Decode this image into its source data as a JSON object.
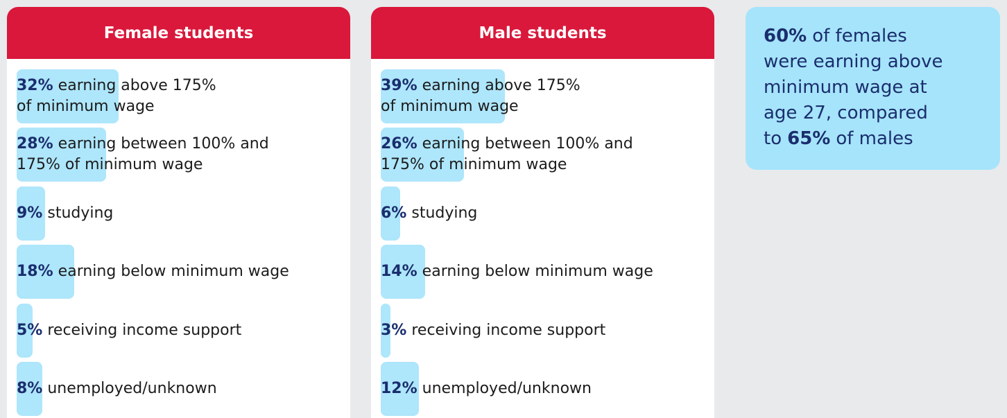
{
  "chart_data": [
    {
      "type": "bar",
      "title": "Female students",
      "color": "#aee6fb",
      "categories": [
        [
          "earning above 175%",
          "of minimum wage"
        ],
        [
          "earning between 100% and",
          "175% of minimum wage"
        ],
        [
          "studying"
        ],
        [
          "earning below minimum wage"
        ],
        [
          "receiving income support"
        ],
        [
          "unemployed/unknown"
        ]
      ],
      "values": [
        32,
        28,
        9,
        18,
        5,
        8
      ],
      "value_labels": [
        "32%",
        "28%",
        "9%",
        "18%",
        "5%",
        "8%"
      ]
    },
    {
      "type": "bar",
      "title": "Male students",
      "color": "#aee6fb",
      "categories": [
        [
          "earning above 175%",
          "of minimum wage"
        ],
        [
          "earning between 100% and",
          "175% of minimum wage"
        ],
        [
          "studying"
        ],
        [
          "earning below minimum wage"
        ],
        [
          "receiving income support"
        ],
        [
          "unemployed/unknown"
        ]
      ],
      "values": [
        39,
        26,
        6,
        14,
        3,
        12
      ],
      "value_labels": [
        "39%",
        "26%",
        "6%",
        "14%",
        "3%",
        "12%"
      ]
    }
  ],
  "callout": {
    "lines": [
      [
        {
          "text": "60%",
          "bold": true
        },
        {
          "text": "of females"
        }
      ],
      [
        {
          "text": "were earning above"
        }
      ],
      [
        {
          "text": "minimum wage at"
        }
      ],
      [
        {
          "text": "age 27, compared"
        }
      ],
      [
        {
          "text": "to"
        },
        {
          "text": "65%",
          "bold": true
        },
        {
          "text": "of males"
        }
      ]
    ]
  }
}
